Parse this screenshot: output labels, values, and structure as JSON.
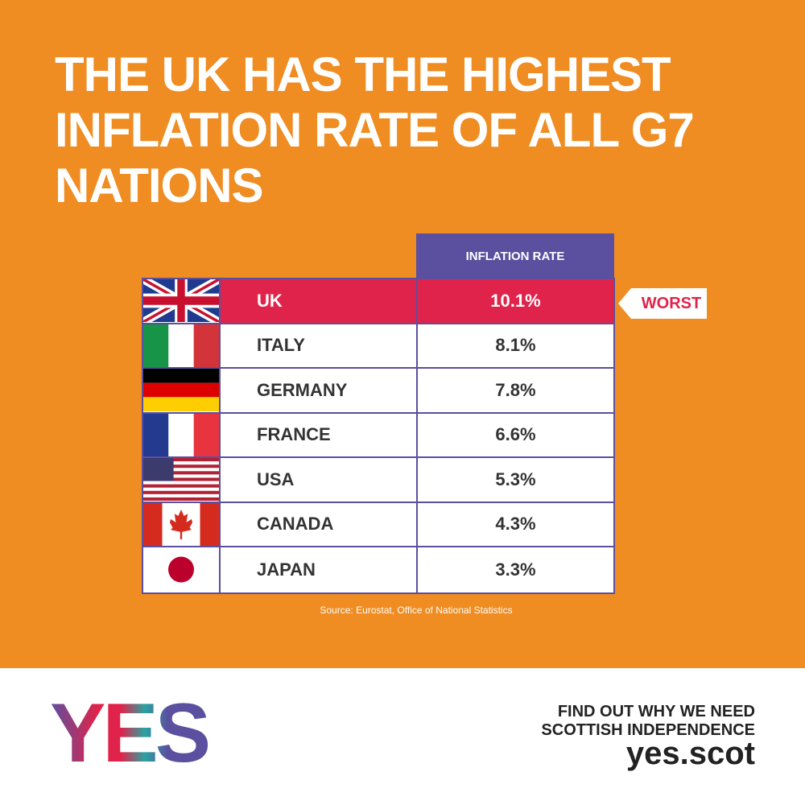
{
  "header": {
    "title": "THE UK HAS THE HIGHEST INFLATION RATE OF ALL G7 NATIONS"
  },
  "table": {
    "column_header": "INFLATION RATE",
    "rows": [
      [
        "UK",
        "10.1%"
      ],
      [
        "ITALY",
        "8.1%"
      ],
      [
        "GERMANY",
        "7.8%"
      ],
      [
        "FRANCE",
        "6.6%"
      ],
      [
        "USA",
        "5.3%"
      ],
      [
        "CANADA",
        "4.3%"
      ],
      [
        "JAPAN",
        "3.3%"
      ]
    ],
    "badge": "WORST"
  },
  "source": "Source: Eurostat, Office of National Statistics",
  "footer": {
    "logo": "YES",
    "cta": [
      "FIND OUT WHY WE NEED",
      "SCOTTISH INDEPENDENCE"
    ],
    "url": "yes.scot"
  }
}
